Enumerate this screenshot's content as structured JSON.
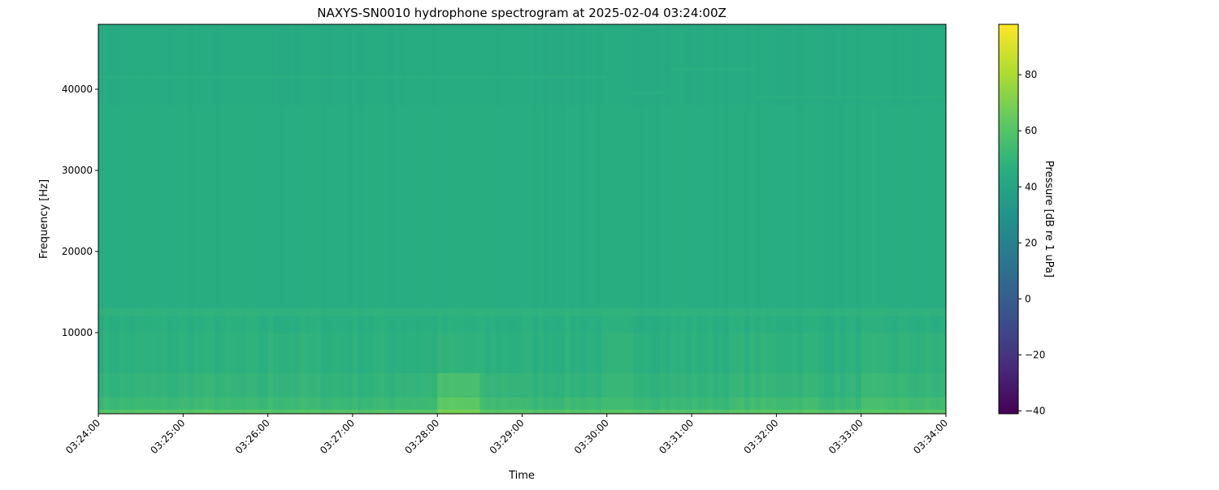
{
  "chart_data": {
    "type": "heatmap",
    "title": "NAXYS-SN0010 hydrophone spectrogram at 2025-02-04 03:24:00Z",
    "xlabel": "Time",
    "ylabel": "Frequency [Hz]",
    "colorbar_label": "Pressure [dB re 1 uPa]",
    "colormap": "viridis",
    "xlim": [
      "03:24:00",
      "03:34:00"
    ],
    "ylim": [
      0,
      48000
    ],
    "clim": [
      -41,
      98
    ],
    "x_ticks": [
      "03:24:00",
      "03:25:00",
      "03:26:00",
      "03:27:00",
      "03:28:00",
      "03:29:00",
      "03:30:00",
      "03:31:00",
      "03:32:00",
      "03:33:00",
      "03:34:00"
    ],
    "y_ticks": [
      10000,
      20000,
      30000,
      40000
    ],
    "colorbar_ticks": [
      -40,
      -20,
      0,
      20,
      40,
      60,
      80
    ],
    "time_bin_seconds": 30,
    "freq_band_edges_hz": [
      0,
      500,
      2000,
      5000,
      10000,
      12000,
      13000,
      38000,
      48000
    ],
    "z_db": [
      [
        60,
        52,
        49,
        47,
        46,
        48,
        45,
        44
      ],
      [
        60,
        52,
        49,
        47,
        46,
        48,
        45,
        44
      ],
      [
        61,
        53,
        50,
        47,
        46,
        48,
        45,
        44
      ],
      [
        60,
        52,
        49,
        47,
        46,
        48,
        45,
        44
      ],
      [
        60,
        53,
        50,
        48,
        46,
        48,
        45,
        44
      ],
      [
        60,
        52,
        49,
        47,
        46,
        48,
        45,
        44
      ],
      [
        60,
        52,
        49,
        47,
        46,
        48,
        45,
        44
      ],
      [
        61,
        53,
        50,
        47,
        46,
        48,
        45,
        44
      ],
      [
        68,
        62,
        56,
        48,
        46,
        48,
        45,
        44
      ],
      [
        61,
        54,
        50,
        47,
        46,
        48,
        45,
        44
      ],
      [
        60,
        52,
        49,
        47,
        46,
        48,
        45,
        44
      ],
      [
        60,
        53,
        49,
        47,
        46,
        48,
        45,
        44
      ],
      [
        61,
        53,
        50,
        48,
        46,
        48,
        45,
        44
      ],
      [
        60,
        52,
        49,
        47,
        46,
        48,
        45,
        44
      ],
      [
        60,
        52,
        49,
        47,
        46,
        48,
        45,
        44
      ],
      [
        61,
        54,
        50,
        48,
        46,
        48,
        45,
        44
      ],
      [
        61,
        54,
        50,
        48,
        46,
        48,
        45,
        44
      ],
      [
        60,
        52,
        49,
        47,
        46,
        48,
        45,
        44
      ],
      [
        61,
        55,
        51,
        48,
        46,
        48,
        45,
        44
      ],
      [
        61,
        54,
        50,
        48,
        46,
        48,
        45,
        44
      ]
    ],
    "tonal_lines": [
      {
        "start": "03:24:00",
        "end": "03:30:00",
        "freq_hz": 41500,
        "db": 47
      },
      {
        "start": "03:30:00",
        "end": "03:30:45",
        "freq_hz": 39500,
        "db": 46
      },
      {
        "start": "03:30:45",
        "end": "03:31:45",
        "freq_hz": 42500,
        "db": 47
      },
      {
        "start": "03:31:45",
        "end": "03:34:00",
        "freq_hz": 39000,
        "db": 47
      }
    ],
    "grid": false
  }
}
